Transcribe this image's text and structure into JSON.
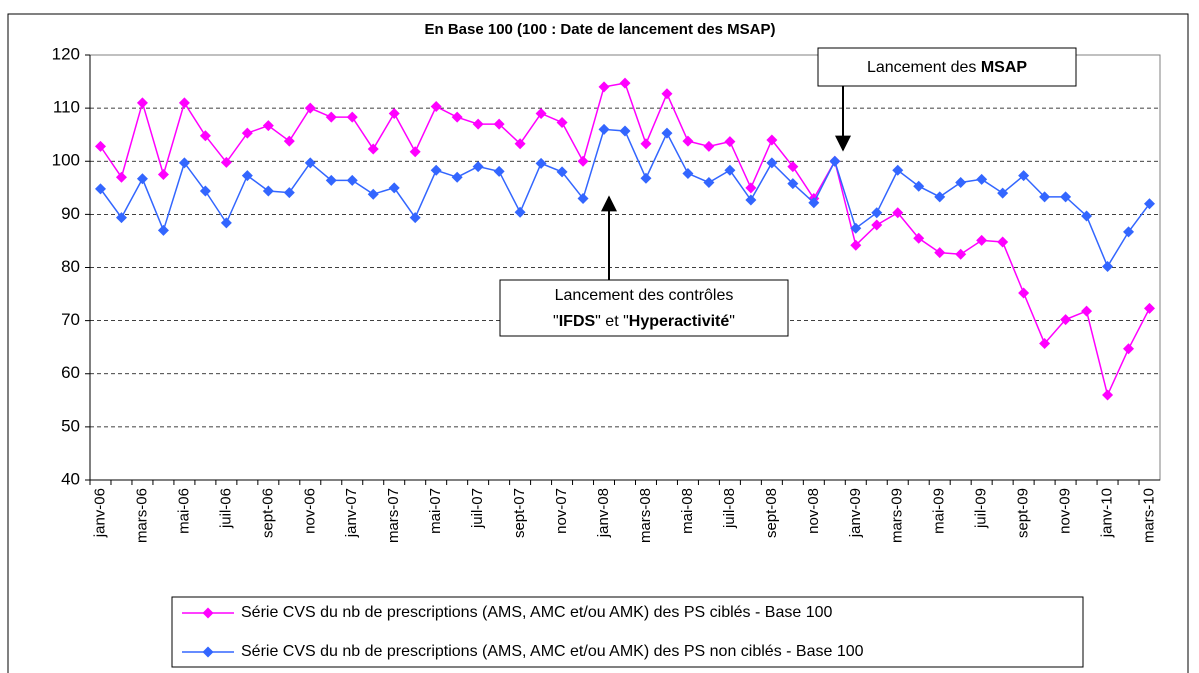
{
  "chart_data": {
    "type": "line",
    "title": "En Base 100  (100 : Date de lancement des MSAP)",
    "categories": [
      "janv-06",
      null,
      "mars-06",
      null,
      "mai-06",
      null,
      "juil-06",
      null,
      "sept-06",
      null,
      "nov-06",
      null,
      "janv-07",
      null,
      "mars-07",
      null,
      "mai-07",
      null,
      "juil-07",
      null,
      "sept-07",
      null,
      "nov-07",
      null,
      "janv-08",
      null,
      "mars-08",
      null,
      "mai-08",
      null,
      "juil-08",
      null,
      "sept-08",
      null,
      "nov-08",
      null,
      "janv-09",
      null,
      "mars-09",
      null,
      "mai-09",
      null,
      "juil-09",
      null,
      "sept-09",
      null,
      "nov-09",
      null,
      "janv-10",
      null,
      "mars-10"
    ],
    "series": [
      {
        "name": "Série CVS du nb de prescriptions (AMS, AMC et/ou AMK) des PS ciblés - Base 100",
        "color": "#ff00ff",
        "values": [
          102.8,
          97,
          111,
          97.5,
          111,
          104.8,
          99.8,
          105.3,
          106.7,
          103.8,
          110,
          108.3,
          108.3,
          102.3,
          109,
          101.8,
          110.3,
          108.3,
          107,
          107,
          103.3,
          109,
          107.3,
          100,
          114,
          114.7,
          103.3,
          112.7,
          103.8,
          102.8,
          103.7,
          95,
          104,
          99,
          93,
          100,
          84.2,
          88,
          90.3,
          85.5,
          82.8,
          82.5,
          85.1,
          84.8,
          75.2,
          65.7,
          70.2,
          71.8,
          56,
          64.7,
          72.3
        ]
      },
      {
        "name": "Série CVS du nb de prescriptions (AMS, AMC et/ou AMK) des PS non ciblés - Base 100",
        "color": "#3366ff",
        "values": [
          94.8,
          89.4,
          96.7,
          87,
          99.7,
          94.4,
          88.4,
          97.3,
          94.4,
          94.1,
          99.7,
          96.4,
          96.4,
          93.8,
          95,
          89.4,
          98.3,
          97,
          99,
          98.1,
          90.4,
          99.6,
          98,
          93,
          106,
          105.7,
          96.8,
          105.3,
          97.7,
          96,
          98.3,
          92.7,
          99.7,
          95.8,
          92.2,
          100,
          87.4,
          90.3,
          98.3,
          95.3,
          93.3,
          96,
          96.6,
          94,
          97.3,
          93.3,
          93.3,
          89.7,
          80.2,
          86.7,
          92
        ]
      }
    ],
    "ylim": [
      40,
      120
    ],
    "yticks": [
      40,
      50,
      60,
      70,
      80,
      90,
      100,
      110,
      120
    ],
    "grid": true,
    "annotations": [
      {
        "lines": [
          [
            "Lancement des ",
            "MSAP"
          ]
        ]
      },
      {
        "lines": [
          [
            "Lancement des contrôles"
          ],
          [
            "\"",
            "IFDS",
            "\" et \"",
            "Hyperactivité",
            "\""
          ]
        ]
      }
    ]
  }
}
